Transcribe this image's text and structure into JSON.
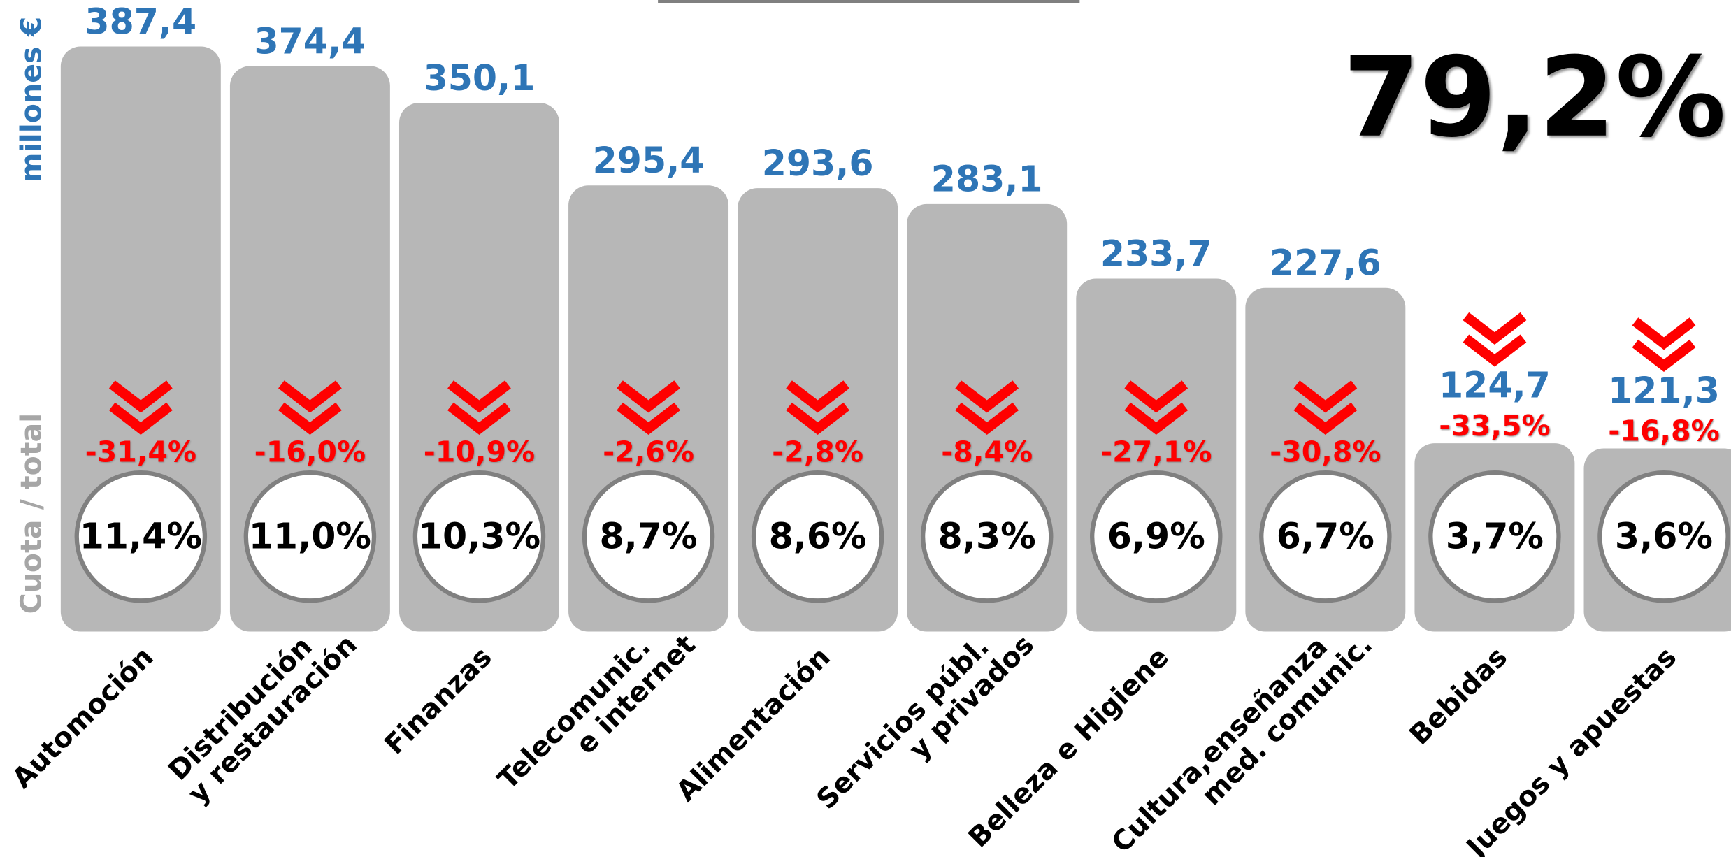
{
  "chart_data": {
    "type": "bar",
    "y_label": "millones €",
    "y2_label": "Cuota / total",
    "annotation": "79,2%",
    "categories": [
      "Automoción",
      "Distribución\ny restauración",
      "Finanzas",
      "Telecomunic.\ne internet",
      "Alimentación",
      "Servicios públ.\ny privados",
      "Belleza e Higiene",
      "Cultura,enseñanza\nmed. comunic.",
      "Bebidas",
      "Juegos y apuestas"
    ],
    "values": [
      387.4,
      374.4,
      350.1,
      295.4,
      293.6,
      283.1,
      233.7,
      227.6,
      124.7,
      121.3
    ],
    "value_labels": [
      "387,4",
      "374,4",
      "350,1",
      "295,4",
      "293,6",
      "283,1",
      "233,7",
      "227,6",
      "124,7",
      "121,3"
    ],
    "color": "#b7b7b7",
    "ylim": [
      0,
      418
    ],
    "change": {
      "values": [
        -31.4,
        -16.0,
        -10.9,
        -2.6,
        -2.8,
        -8.4,
        -27.1,
        -30.8,
        -33.5,
        -16.8
      ],
      "value_labels": [
        "-31,4%",
        "-16,0%",
        "-10,9%",
        "-2,6%",
        "-2,8%",
        "-8,4%",
        "-27,1%",
        "-30,8%",
        "-33,5%",
        "-16,8%"
      ]
    },
    "share": {
      "values": [
        11.4,
        11.0,
        10.3,
        8.7,
        8.6,
        8.3,
        6.9,
        6.7,
        3.7,
        3.6
      ],
      "value_labels": [
        "11,4%",
        "11,0%",
        "10,3%",
        "8,7%",
        "8,6%",
        "8,3%",
        "6,9%",
        "6,7%",
        "3,7%",
        "3,6%"
      ]
    }
  }
}
